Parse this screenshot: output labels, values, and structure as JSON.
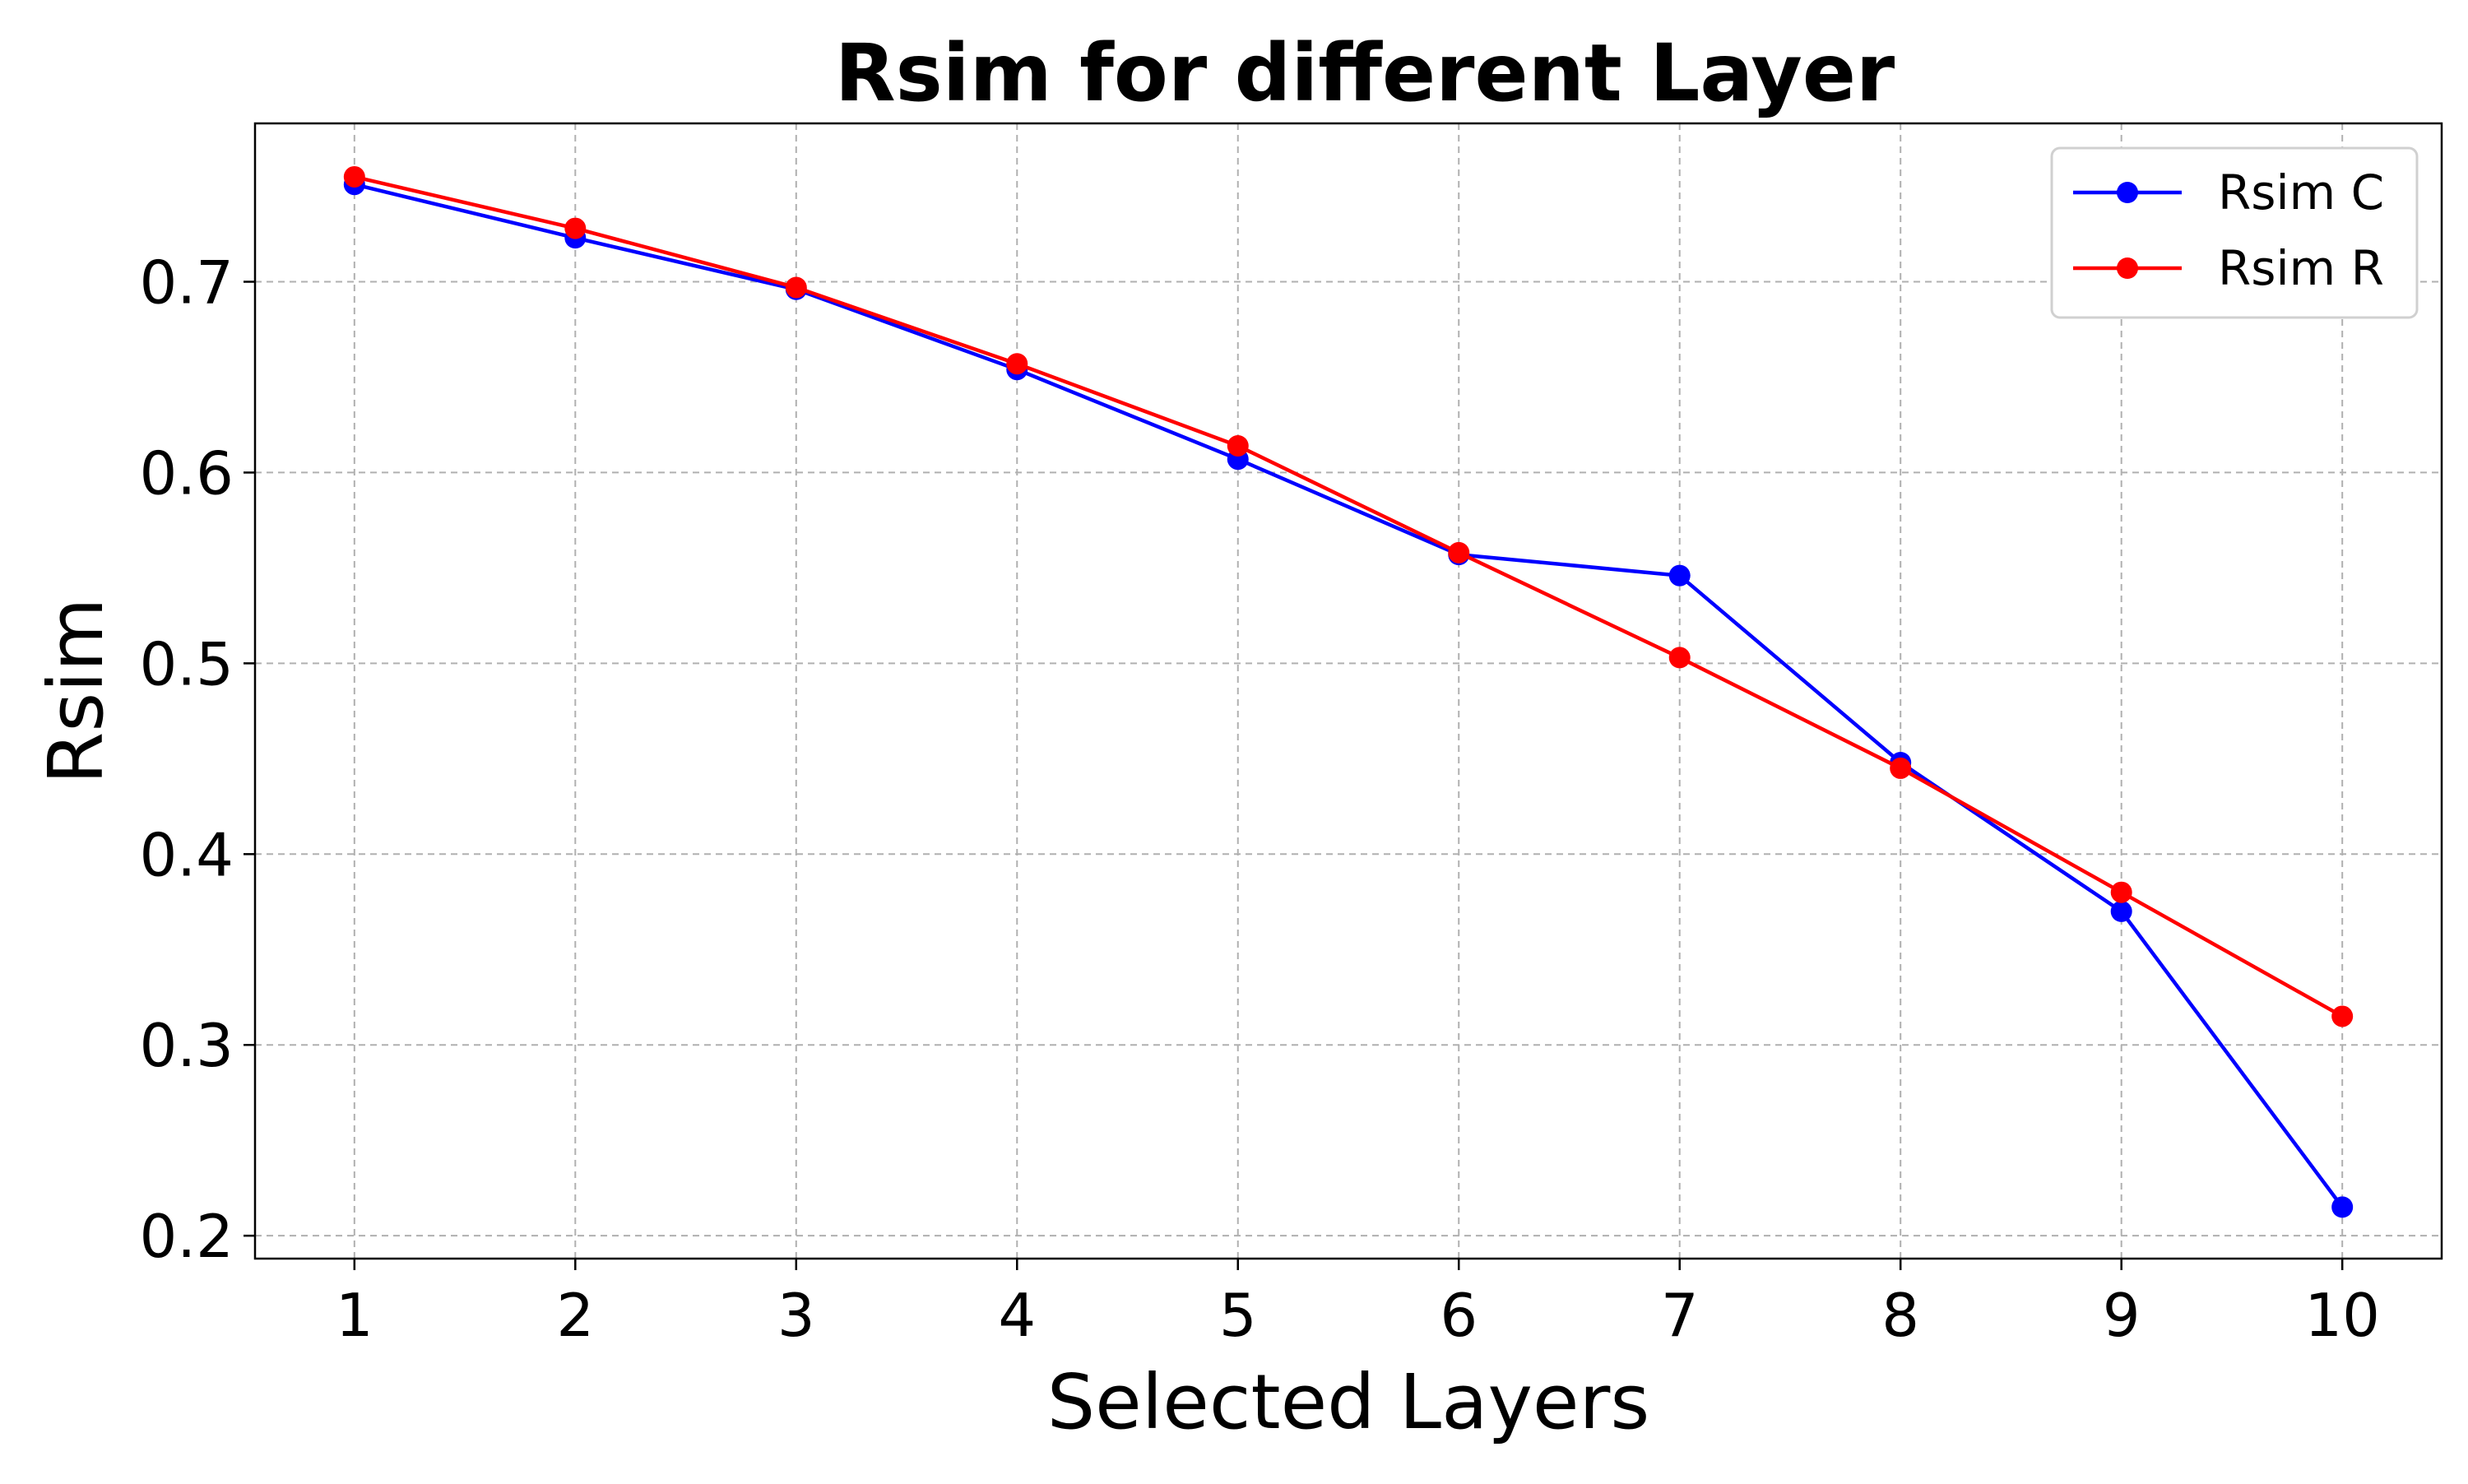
{
  "chart_data": {
    "type": "line",
    "title": "Rsim for different Layer",
    "xlabel": "Selected Layers",
    "ylabel": "Rsim",
    "x": [
      1,
      2,
      3,
      4,
      5,
      6,
      7,
      8,
      9,
      10
    ],
    "xlim": [
      0.55,
      10.45
    ],
    "ylim": [
      0.188,
      0.783
    ],
    "xticks": [
      1,
      2,
      3,
      4,
      5,
      6,
      7,
      8,
      9,
      10
    ],
    "yticks": [
      0.2,
      0.3,
      0.4,
      0.5,
      0.6,
      0.7
    ],
    "grid": true,
    "legend_position": "top-right",
    "series": [
      {
        "name": "Rsim C",
        "color": "#0000ff",
        "marker": "circle",
        "values": [
          0.751,
          0.723,
          0.696,
          0.654,
          0.607,
          0.557,
          0.546,
          0.448,
          0.37,
          0.215
        ]
      },
      {
        "name": "Rsim R",
        "color": "#ff0000",
        "marker": "circle",
        "values": [
          0.755,
          0.728,
          0.697,
          0.657,
          0.614,
          0.558,
          0.503,
          0.445,
          0.38,
          0.315
        ]
      }
    ]
  }
}
